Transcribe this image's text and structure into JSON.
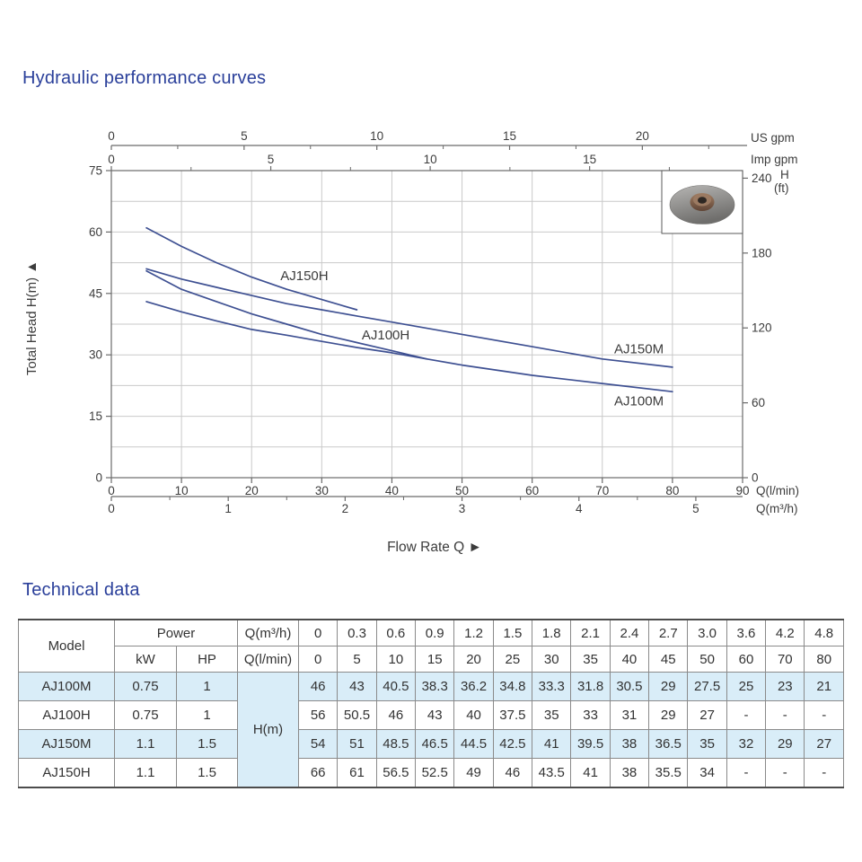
{
  "page": {
    "chart_section_title": "Hydraulic performance curves",
    "table_section_title": "Technical data"
  },
  "chart_data": {
    "type": "line",
    "title": "Hydraulic performance curves",
    "xlabel": "Flow Rate Q ►",
    "grid": true,
    "x_axis_lpm": {
      "label": "Q(l/min)",
      "ticks": [
        0,
        10,
        20,
        30,
        40,
        50,
        60,
        70,
        80,
        90
      ],
      "range": [
        0,
        90
      ]
    },
    "x_axis_m3h": {
      "label": "Q(m³/h)",
      "ticks": [
        0,
        1,
        2,
        3,
        4,
        5
      ],
      "minor_step": 0.5,
      "lpm_per_unit": 16.6667
    },
    "x_axis_usgpm": {
      "label": "US gpm",
      "ticks": [
        0,
        5,
        10,
        15,
        20
      ],
      "minor_step": 2.5,
      "lpm_per_unit": 3.7854
    },
    "x_axis_impgpm": {
      "label": "Imp gpm",
      "ticks": [
        0,
        5,
        10,
        15
      ],
      "minor_step": 2.5,
      "lpm_per_unit": 4.5461
    },
    "y_axis_m": {
      "label": "Total Head H(m) ▲",
      "ticks": [
        0,
        15,
        30,
        45,
        60,
        75
      ],
      "minor_step": 7.5,
      "range": [
        0,
        75
      ]
    },
    "y_axis_ft": {
      "label_h": "H",
      "label_ft": "(ft)",
      "ticks": [
        0,
        60,
        120,
        180,
        240
      ],
      "m_per_unit": 0.3048
    },
    "series": [
      {
        "name": "AJ150H",
        "label_at": [
          24.1,
          48.3
        ],
        "points": [
          [
            5,
            61
          ],
          [
            10,
            56.5
          ],
          [
            15,
            52.5
          ],
          [
            20,
            49
          ],
          [
            25,
            46
          ],
          [
            30,
            43.5
          ],
          [
            35,
            41
          ]
        ]
      },
      {
        "name": "AJ100H",
        "label_at": [
          35.7,
          33.8
        ],
        "points": [
          [
            5,
            50.5
          ],
          [
            10,
            46
          ],
          [
            15,
            43
          ],
          [
            20,
            40
          ],
          [
            25,
            37.5
          ],
          [
            30,
            35
          ],
          [
            35,
            33
          ],
          [
            40,
            31
          ],
          [
            45,
            29
          ]
        ]
      },
      {
        "name": "AJ150M",
        "label_at": [
          71.7,
          30.4
        ],
        "points": [
          [
            5,
            51
          ],
          [
            10,
            48.5
          ],
          [
            15,
            46.5
          ],
          [
            20,
            44.5
          ],
          [
            25,
            42.5
          ],
          [
            30,
            41
          ],
          [
            35,
            39.5
          ],
          [
            40,
            38
          ],
          [
            45,
            36.5
          ],
          [
            50,
            35
          ],
          [
            60,
            32
          ],
          [
            70,
            29
          ],
          [
            80,
            27
          ]
        ]
      },
      {
        "name": "AJ100M",
        "label_at": [
          71.7,
          17.7
        ],
        "points": [
          [
            5,
            43
          ],
          [
            10,
            40.5
          ],
          [
            15,
            38.3
          ],
          [
            20,
            36.2
          ],
          [
            25,
            34.8
          ],
          [
            30,
            33.3
          ],
          [
            35,
            31.8
          ],
          [
            40,
            30.5
          ],
          [
            45,
            29
          ],
          [
            50,
            27.5
          ],
          [
            60,
            25
          ],
          [
            70,
            23
          ],
          [
            80,
            21
          ]
        ]
      }
    ],
    "colors": {
      "curve": "#3e5092",
      "grid": "#c9c9c9",
      "axis": "#6a6a6a",
      "text": "#3c3c3c",
      "title": "#2a3f9a"
    }
  },
  "impeller_photo": {
    "icon": "impeller-photo"
  },
  "table": {
    "title": "Technical data",
    "header": {
      "model": "Model",
      "power": "Power",
      "kw": "kW",
      "hp": "HP",
      "q_m3h": "Q(m³/h)",
      "q_lmin": "Q(l/min)",
      "h_m": "H(m)"
    },
    "q_m3h_values": [
      "0",
      "0.3",
      "0.6",
      "0.9",
      "1.2",
      "1.5",
      "1.8",
      "2.1",
      "2.4",
      "2.7",
      "3.0",
      "3.6",
      "4.2",
      "4.8"
    ],
    "q_lmin_values": [
      "0",
      "5",
      "10",
      "15",
      "20",
      "25",
      "30",
      "35",
      "40",
      "45",
      "50",
      "60",
      "70",
      "80"
    ],
    "rows": [
      {
        "model": "AJ100M",
        "kw": "0.75",
        "hp": "1",
        "h": [
          "46",
          "43",
          "40.5",
          "38.3",
          "36.2",
          "34.8",
          "33.3",
          "31.8",
          "30.5",
          "29",
          "27.5",
          "25",
          "23",
          "21"
        ]
      },
      {
        "model": "AJ100H",
        "kw": "0.75",
        "hp": "1",
        "h": [
          "56",
          "50.5",
          "46",
          "43",
          "40",
          "37.5",
          "35",
          "33",
          "31",
          "29",
          "27",
          "-",
          "-",
          "-"
        ]
      },
      {
        "model": "AJ150M",
        "kw": "1.1",
        "hp": "1.5",
        "h": [
          "54",
          "51",
          "48.5",
          "46.5",
          "44.5",
          "42.5",
          "41",
          "39.5",
          "38",
          "36.5",
          "35",
          "32",
          "29",
          "27"
        ]
      },
      {
        "model": "AJ150H",
        "kw": "1.1",
        "hp": "1.5",
        "h": [
          "66",
          "61",
          "56.5",
          "52.5",
          "49",
          "46",
          "43.5",
          "41",
          "38",
          "35.5",
          "34",
          "-",
          "-",
          "-"
        ]
      }
    ]
  }
}
